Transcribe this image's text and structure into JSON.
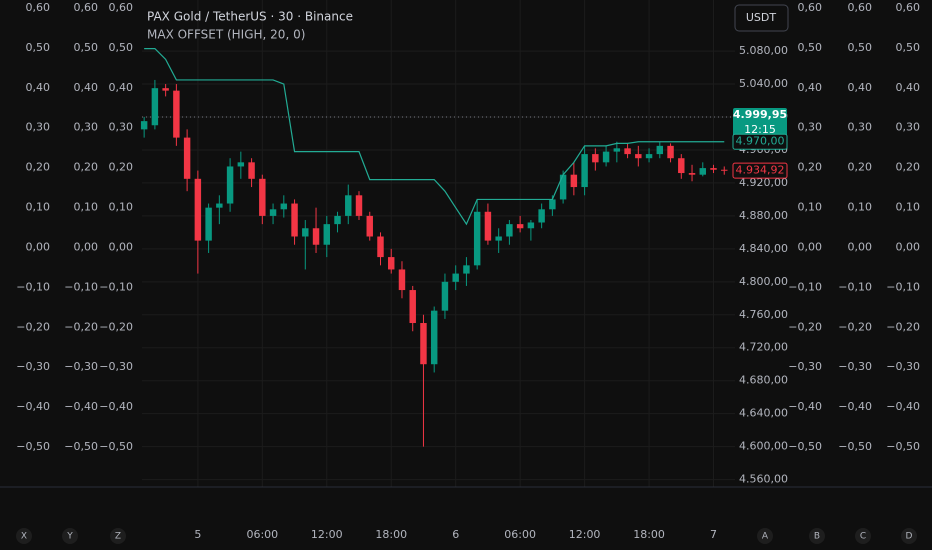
{
  "chart_data": {
    "type": "candlestick",
    "title": "PAX Gold / TetherUS · 30 · Binance",
    "indicator_label": "MAX OFFSET (HIGH, 20, 0)",
    "currency_button": "USDT",
    "up_color": "#089981",
    "down_color": "#f23645",
    "indicator_color": "#22ab94",
    "xlim": [
      -0.2,
      55
    ],
    "xticks": [
      {
        "value": 5,
        "label": "5"
      },
      {
        "value": 11,
        "label": "06:00"
      },
      {
        "value": 17,
        "label": "12:00"
      },
      {
        "value": 23,
        "label": "18:00"
      },
      {
        "value": 29,
        "label": "6"
      },
      {
        "value": 35,
        "label": "06:00"
      },
      {
        "value": 41,
        "label": "12:00"
      },
      {
        "value": 47,
        "label": "18:00"
      },
      {
        "value": 53,
        "label": "7"
      }
    ],
    "ylim": [
      4551,
      5142
    ],
    "yticks": [
      {
        "value": 4560,
        "label": "4.560,00"
      },
      {
        "value": 4600,
        "label": "4.600,00"
      },
      {
        "value": 4640,
        "label": "4.640,00"
      },
      {
        "value": 4680,
        "label": "4.680,00"
      },
      {
        "value": 4720,
        "label": "4.720,00"
      },
      {
        "value": 4760,
        "label": "4.760,00"
      },
      {
        "value": 4800,
        "label": "4.800,00"
      },
      {
        "value": 4840,
        "label": "4.840,00"
      },
      {
        "value": 4880,
        "label": "4.880,00"
      },
      {
        "value": 4920,
        "label": "4.920,00"
      },
      {
        "value": 4960,
        "label": "4.960,00"
      },
      {
        "value": 5000,
        "label": "5.000,00"
      },
      {
        "value": 5040,
        "label": "5.040,00"
      },
      {
        "value": 5080,
        "label": "5.080,00"
      }
    ],
    "side_ylim": [
      -0.6,
      0.62
    ],
    "side_ticks": [
      {
        "value": 0.6,
        "label": "0,60"
      },
      {
        "value": 0.5,
        "label": "0,50"
      },
      {
        "value": 0.4,
        "label": "0,40"
      },
      {
        "value": 0.3,
        "label": "0,30"
      },
      {
        "value": 0.2,
        "label": "0,20"
      },
      {
        "value": 0.1,
        "label": "0,10"
      },
      {
        "value": 0,
        "label": "0,00"
      },
      {
        "value": -0.1,
        "label": "−0,10"
      },
      {
        "value": -0.2,
        "label": "−0,20"
      },
      {
        "value": -0.3,
        "label": "−0,30"
      },
      {
        "value": -0.4,
        "label": "−0,40"
      },
      {
        "value": -0.5,
        "label": "−0,50"
      }
    ],
    "left_scale_names": [
      "X",
      "Y",
      "Z"
    ],
    "right_scale_names": [
      "A",
      "B",
      "C",
      "D"
    ],
    "open": [
      4985,
      4990,
      5035,
      5032,
      4975,
      4925,
      4850,
      4890,
      4895,
      4940,
      4945,
      4925,
      4880,
      4888,
      4895,
      4855,
      4865,
      4845,
      4870,
      4880,
      4905,
      4880,
      4855,
      4830,
      4815,
      4790,
      4750,
      4700,
      4765,
      4800,
      4810,
      4820,
      4885,
      4850,
      4855,
      4870,
      4865,
      4872,
      4888,
      4900,
      4930,
      4915,
      4955,
      4945,
      4958,
      4962,
      4955,
      4950,
      4955,
      4965,
      4950,
      4932,
      4930,
      4938,
      4936
    ],
    "high": [
      5000,
      5045,
      5040,
      5040,
      4985,
      4935,
      4895,
      4905,
      4950,
      4958,
      4950,
      4930,
      4895,
      4905,
      4900,
      4875,
      4890,
      4880,
      4885,
      4918,
      4910,
      4885,
      4860,
      4840,
      4825,
      4795,
      4760,
      4770,
      4810,
      4820,
      4830,
      4900,
      4895,
      4865,
      4875,
      4880,
      4875,
      4895,
      4905,
      4935,
      4945,
      4965,
      4962,
      4965,
      4970,
      4968,
      4965,
      4962,
      4970,
      4968,
      4955,
      4942,
      4945,
      4942,
      4940
    ],
    "low": [
      4975,
      4985,
      5025,
      4965,
      4910,
      4810,
      4835,
      4870,
      4885,
      4925,
      4915,
      4870,
      4870,
      4878,
      4845,
      4815,
      4835,
      4830,
      4860,
      4870,
      4875,
      4850,
      4820,
      4810,
      4780,
      4740,
      4600,
      4690,
      4755,
      4790,
      4795,
      4815,
      4845,
      4835,
      4845,
      4860,
      4850,
      4865,
      4880,
      4895,
      4905,
      4905,
      4935,
      4940,
      4945,
      4950,
      4940,
      4945,
      4950,
      4945,
      4925,
      4922,
      4928,
      4932,
      4930
    ],
    "close": [
      4995,
      5035,
      5032,
      4975,
      4925,
      4850,
      4890,
      4895,
      4940,
      4945,
      4925,
      4880,
      4888,
      4895,
      4855,
      4865,
      4845,
      4870,
      4880,
      4905,
      4880,
      4855,
      4830,
      4815,
      4790,
      4750,
      4700,
      4765,
      4800,
      4810,
      4820,
      4885,
      4850,
      4855,
      4870,
      4865,
      4872,
      4888,
      4900,
      4930,
      4915,
      4955,
      4945,
      4958,
      4962,
      4955,
      4950,
      4955,
      4965,
      4950,
      4932,
      4930,
      4938,
      4936,
      4934.92
    ],
    "indicator_values": [
      5083,
      5083,
      5070,
      5045,
      5045,
      5045,
      5045,
      5045,
      5045,
      5045,
      5045,
      5045,
      5045,
      5040,
      4958,
      4958,
      4958,
      4958,
      4958,
      4958,
      4958,
      4924,
      4924,
      4924,
      4924,
      4924,
      4924,
      4924,
      4910,
      4890,
      4870,
      4900,
      4900,
      4900,
      4900,
      4900,
      4900,
      4900,
      4900,
      4930,
      4945,
      4965,
      4965,
      4965,
      4968,
      4968,
      4970,
      4970,
      4970,
      4970,
      4970,
      4970,
      4970,
      4970,
      4970
    ],
    "reference_price": {
      "value": 4999.95,
      "label": "4.999,95"
    },
    "countdown": "12:15",
    "indicator_price": {
      "value": 4970,
      "label": "4.970,00"
    },
    "last_price": {
      "value": 4934.92,
      "label": "4.934,92"
    }
  }
}
